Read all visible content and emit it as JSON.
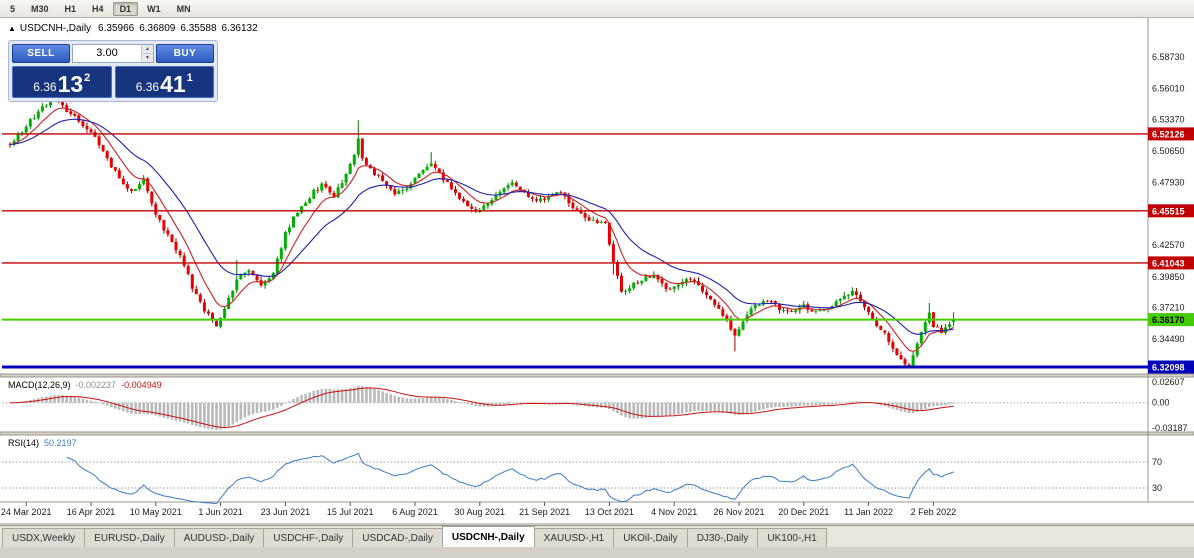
{
  "toolbar": {
    "timeframes": [
      {
        "label": "5",
        "active": false
      },
      {
        "label": "M30",
        "active": false
      },
      {
        "label": "H1",
        "active": false
      },
      {
        "label": "H4",
        "active": false
      },
      {
        "label": "D1",
        "active": true
      },
      {
        "label": "W1",
        "active": false
      },
      {
        "label": "MN",
        "active": false
      }
    ]
  },
  "icons": {
    "collapse_arrow": "▲",
    "spinner_up": "▲",
    "spinner_down": "▼"
  },
  "chart_header": {
    "symbol_title": "USDCNH-,Daily",
    "open": "6.35966",
    "high": "6.36809",
    "low": "6.35588",
    "close": "6.36132"
  },
  "one_click": {
    "sell_label": "SELL",
    "buy_label": "BUY",
    "volume": "3.00",
    "bid_small": "6.36",
    "bid_big": "13",
    "bid_sup": "2",
    "ask_small": "6.36",
    "ask_big": "41",
    "ask_sup": "1"
  },
  "macd_panel": {
    "name": "MACD(12,26,9)",
    "main_value": "-0.002237",
    "signal_value": "-0.004949"
  },
  "rsi_panel": {
    "name": "RSI(14)",
    "value": "50.2197"
  },
  "tabs": [
    {
      "label": "USDX,Weekly",
      "active": false
    },
    {
      "label": "EURUSD-,Daily",
      "active": false
    },
    {
      "label": "AUDUSD-,Daily",
      "active": false
    },
    {
      "label": "USDCHF-,Daily",
      "active": false
    },
    {
      "label": "USDCAD-,Daily",
      "active": false
    },
    {
      "label": "USDCNH-,Daily",
      "active": true
    },
    {
      "label": "XAUUSD-,H1",
      "active": false
    },
    {
      "label": "UKOil-,Daily",
      "active": false
    },
    {
      "label": "DJ30-,Daily",
      "active": false
    },
    {
      "label": "UK100-,H1",
      "active": false
    }
  ],
  "chart_data": {
    "type": "candlestick",
    "symbol": "USDCNH-",
    "timeframe": "Daily",
    "ohlc_current": {
      "open": 6.35966,
      "high": 6.36809,
      "low": 6.35588,
      "close": 6.36132
    },
    "price_axis_labels": [
      "6.58730",
      "6.56010",
      "6.53370",
      "6.50650",
      "6.47930",
      "6.42570",
      "6.39850",
      "6.37210",
      "6.34490"
    ],
    "level_lines": [
      {
        "price": 6.52126,
        "label": "6.52126",
        "color": "#c00000",
        "width": 1.4,
        "text_color": "#ffffff"
      },
      {
        "price": 6.45515,
        "label": "6.45515",
        "color": "#c00000",
        "width": 1.4,
        "text_color": "#ffffff"
      },
      {
        "price": 6.41043,
        "label": "6.41043",
        "color": "#c00000",
        "width": 1.4,
        "text_color": "#ffffff"
      },
      {
        "price": 6.3617,
        "label": "6.36170",
        "color": "#44cc00",
        "width": 2,
        "text_color": "#000000"
      },
      {
        "price": 6.32098,
        "label": "6.32098",
        "color": "#0000bb",
        "width": 3,
        "text_color": "#ffffff"
      }
    ],
    "date_labels": [
      "24 Mar 2021",
      "16 Apr 2021",
      "10 May 2021",
      "1 Jun 2021",
      "23 Jun 2021",
      "15 Jul 2021",
      "6 Aug 2021",
      "30 Aug 2021",
      "21 Sep 2021",
      "13 Oct 2021",
      "4 Nov 2021",
      "26 Nov 2021",
      "20 Dec 2021",
      "11 Jan 2022",
      "2 Feb 2022"
    ],
    "x_first_tick_bar": 4,
    "x_tick_step_bars": 16,
    "macd": {
      "params": [
        12,
        26,
        9
      ],
      "axis_labels": [
        "0.02607",
        "0.00",
        "-0.03187"
      ],
      "axis_values": [
        0.02607,
        0,
        -0.03187
      ],
      "histogram_color": "#b9b9b9",
      "signal_color": "#cc1111",
      "current_main": -0.002237,
      "current_signal": -0.004949
    },
    "rsi": {
      "period": 14,
      "levels": [
        70,
        30
      ],
      "color": "#3a7bc8",
      "current": 50.2197
    },
    "moving_averages": [
      {
        "type": "ema",
        "period": 8,
        "color": "#cc2222"
      },
      {
        "type": "ema",
        "period": 21,
        "color": "#1f1fb4"
      }
    ],
    "candles": {
      "count": 234,
      "up_fill": "#00b000",
      "up_stroke": "#007a00",
      "down_fill": "#e80000",
      "down_stroke": "#990000",
      "noise": 0.0025,
      "wick": 0.0032,
      "seed": 11,
      "anchors": [
        [
          0,
          6.512
        ],
        [
          4,
          6.528
        ],
        [
          8,
          6.545
        ],
        [
          11,
          6.553
        ],
        [
          14,
          6.542
        ],
        [
          18,
          6.53
        ],
        [
          21,
          6.518
        ],
        [
          24,
          6.5
        ],
        [
          27,
          6.482
        ],
        [
          30,
          6.47
        ],
        [
          33,
          6.483
        ],
        [
          36,
          6.452
        ],
        [
          39,
          6.434
        ],
        [
          42,
          6.416
        ],
        [
          45,
          6.39
        ],
        [
          48,
          6.37
        ],
        [
          51,
          6.357
        ],
        [
          53,
          6.37
        ],
        [
          56,
          6.396
        ],
        [
          59,
          6.405
        ],
        [
          62,
          6.39
        ],
        [
          65,
          6.402
        ],
        [
          68,
          6.436
        ],
        [
          71,
          6.455
        ],
        [
          74,
          6.468
        ],
        [
          77,
          6.478
        ],
        [
          80,
          6.468
        ],
        [
          83,
          6.486
        ],
        [
          85,
          6.505
        ],
        [
          86,
          6.518
        ],
        [
          87,
          6.5
        ],
        [
          89,
          6.492
        ],
        [
          92,
          6.48
        ],
        [
          95,
          6.47
        ],
        [
          98,
          6.476
        ],
        [
          101,
          6.486
        ],
        [
          104,
          6.497
        ],
        [
          106,
          6.488
        ],
        [
          109,
          6.475
        ],
        [
          112,
          6.462
        ],
        [
          115,
          6.455
        ],
        [
          118,
          6.462
        ],
        [
          121,
          6.471
        ],
        [
          124,
          6.48
        ],
        [
          127,
          6.47
        ],
        [
          130,
          6.464
        ],
        [
          133,
          6.467
        ],
        [
          136,
          6.471
        ],
        [
          139,
          6.458
        ],
        [
          142,
          6.45
        ],
        [
          145,
          6.446
        ],
        [
          147,
          6.443
        ],
        [
          149,
          6.412
        ],
        [
          151,
          6.386
        ],
        [
          153,
          6.39
        ],
        [
          156,
          6.397
        ],
        [
          159,
          6.4
        ],
        [
          162,
          6.388
        ],
        [
          165,
          6.393
        ],
        [
          168,
          6.398
        ],
        [
          171,
          6.386
        ],
        [
          174,
          6.374
        ],
        [
          177,
          6.36
        ],
        [
          179,
          6.347
        ],
        [
          181,
          6.36
        ],
        [
          184,
          6.374
        ],
        [
          187,
          6.379
        ],
        [
          190,
          6.371
        ],
        [
          193,
          6.369
        ],
        [
          196,
          6.374
        ],
        [
          199,
          6.367
        ],
        [
          202,
          6.373
        ],
        [
          205,
          6.379
        ],
        [
          208,
          6.385
        ],
        [
          210,
          6.378
        ],
        [
          212,
          6.366
        ],
        [
          214,
          6.357
        ],
        [
          216,
          6.35
        ],
        [
          218,
          6.336
        ],
        [
          220,
          6.326
        ],
        [
          222,
          6.323
        ],
        [
          224,
          6.341
        ],
        [
          226,
          6.36
        ],
        [
          227,
          6.369
        ],
        [
          228,
          6.356
        ],
        [
          230,
          6.352
        ],
        [
          232,
          6.358
        ],
        [
          233,
          6.3613
        ]
      ],
      "spikes": [
        {
          "bar": 11,
          "high": 6.556
        },
        {
          "bar": 56,
          "high": 6.413
        },
        {
          "bar": 86,
          "high": 6.533
        },
        {
          "bar": 104,
          "high": 6.5055
        },
        {
          "bar": 149,
          "low": 6.4005
        },
        {
          "bar": 179,
          "low": 6.3345
        },
        {
          "bar": 221,
          "low": 6.321
        },
        {
          "bar": 227,
          "high": 6.376
        }
      ]
    }
  }
}
